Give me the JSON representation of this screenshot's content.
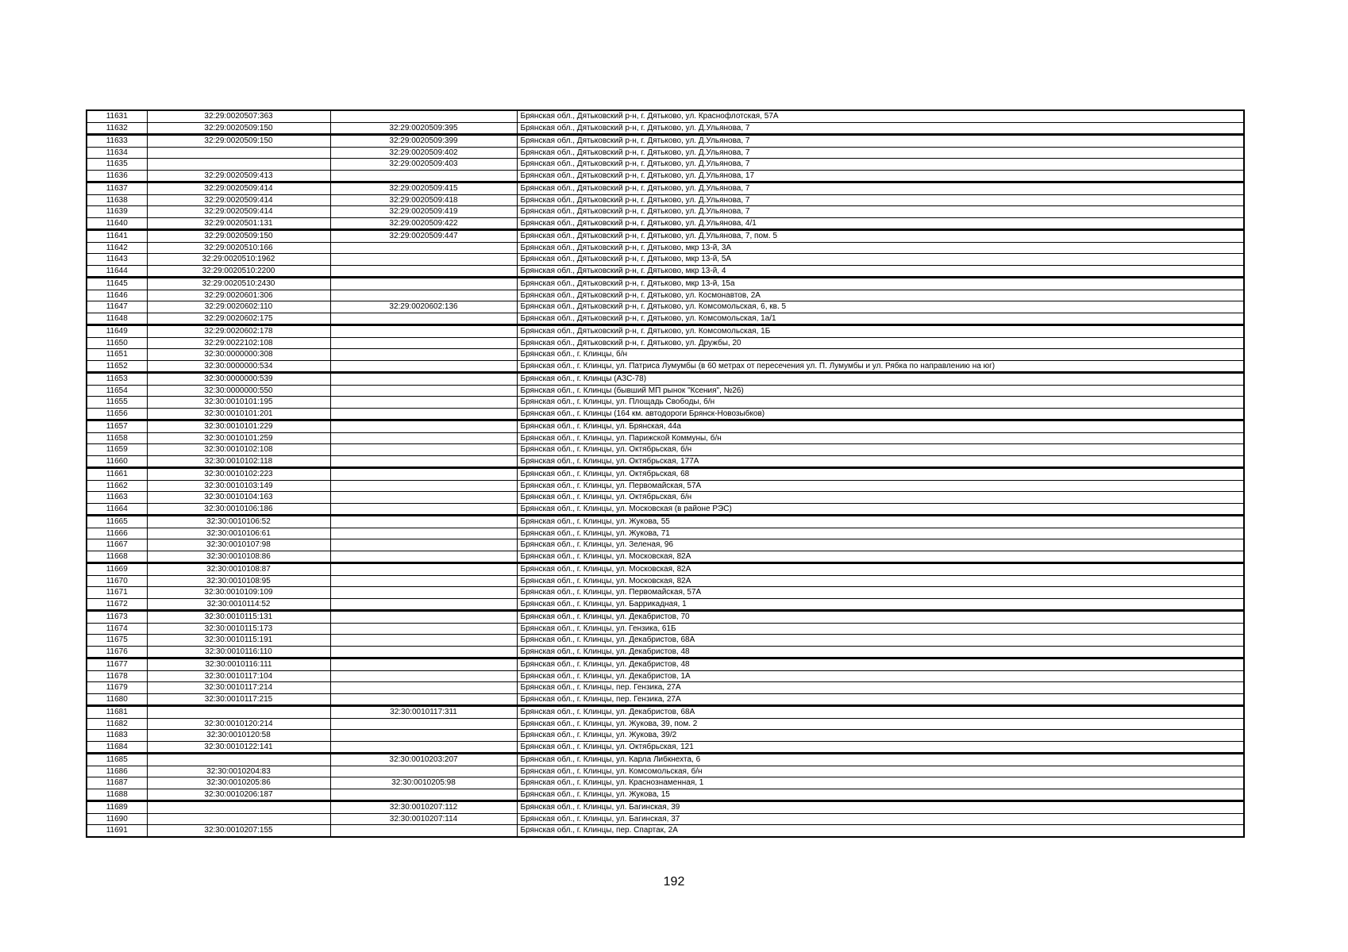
{
  "page": {
    "number": "192"
  },
  "table": {
    "rows": [
      {
        "n": "11631",
        "c1": "32:29:0020507:363",
        "c2": "",
        "addr": "Брянская обл., Дятьковский р-н, г. Дятьково, ул. Краснофлотская, 57А"
      },
      {
        "n": "11632",
        "c1": "32:29:0020509:150",
        "c2": "32:29:0020509:395",
        "addr": "Брянская обл., Дятьковский р-н, г. Дятьково, ул. Д.Ульянова, 7"
      },
      {
        "n": "11633",
        "c1": "32:29:0020509:150",
        "c2": "32:29:0020509:399",
        "addr": "Брянская обл., Дятьковский р-н, г. Дятьково, ул. Д.Ульянова, 7"
      },
      {
        "n": "11634",
        "c1": "",
        "c2": "32:29:0020509:402",
        "addr": "Брянская обл., Дятьковский р-н, г. Дятьково, ул. Д.Ульянова, 7"
      },
      {
        "n": "11635",
        "c1": "",
        "c2": "32:29:0020509:403",
        "addr": "Брянская обл., Дятьковский р-н, г. Дятьково, ул. Д.Ульянова, 7"
      },
      {
        "n": "11636",
        "c1": "32:29:0020509:413",
        "c2": "",
        "addr": "Брянская обл., Дятьковский р-н, г. Дятьково, ул. Д.Ульянова, 17"
      },
      {
        "n": "11637",
        "c1": "32:29:0020509:414",
        "c2": "32:29:0020509:415",
        "addr": "Брянская обл., Дятьковский р-н, г. Дятьково, ул. Д.Ульянова, 7"
      },
      {
        "n": "11638",
        "c1": "32:29:0020509:414",
        "c2": "32:29:0020509:418",
        "addr": "Брянская обл., Дятьковский р-н, г. Дятьково, ул. Д.Ульянова, 7"
      },
      {
        "n": "11639",
        "c1": "32:29:0020509:414",
        "c2": "32:29:0020509:419",
        "addr": "Брянская обл., Дятьковский р-н, г. Дятьково, ул. Д.Ульянова, 7"
      },
      {
        "n": "11640",
        "c1": "32:29:0020501:131",
        "c2": "32:29:0020509:422",
        "addr": "Брянская обл., Дятьковский р-н, г. Дятьково, ул. Д.Ульянова, 4/1"
      },
      {
        "n": "11641",
        "c1": "32:29:0020509:150",
        "c2": "32:29:0020509:447",
        "addr": "Брянская обл., Дятьковский р-н, г. Дятьково, ул. Д.Ульянова, 7, пом. 5"
      },
      {
        "n": "11642",
        "c1": "32:29:0020510:166",
        "c2": "",
        "addr": "Брянская обл., Дятьковский р-н, г. Дятьково, мкр 13-й, 3А"
      },
      {
        "n": "11643",
        "c1": "32:29:0020510:1962",
        "c2": "",
        "addr": "Брянская обл., Дятьковский р-н, г. Дятьково, мкр 13-й, 5А"
      },
      {
        "n": "11644",
        "c1": "32:29:0020510:2200",
        "c2": "",
        "addr": "Брянская обл., Дятьковский р-н, г. Дятьково, мкр 13-й, 4"
      },
      {
        "n": "11645",
        "c1": "32:29:0020510:2430",
        "c2": "",
        "addr": "Брянская обл., Дятьковский р-н, г. Дятьково, мкр 13-й, 15а"
      },
      {
        "n": "11646",
        "c1": "32:29:0020601:306",
        "c2": "",
        "addr": "Брянская обл., Дятьковский р-н, г. Дятьково, ул. Космонавтов, 2А"
      },
      {
        "n": "11647",
        "c1": "32:29:0020602:110",
        "c2": "32:29:0020602:136",
        "addr": "Брянская обл., Дятьковский р-н, г. Дятьково, ул. Комсомольская, 6, кв. 5"
      },
      {
        "n": "11648",
        "c1": "32:29:0020602:175",
        "c2": "",
        "addr": "Брянская обл., Дятьковский р-н, г. Дятьково, ул. Комсомольская, 1а/1"
      },
      {
        "n": "11649",
        "c1": "32:29:0020602:178",
        "c2": "",
        "addr": "Брянская обл., Дятьковский р-н, г. Дятьково, ул. Комсомольская, 1Б"
      },
      {
        "n": "11650",
        "c1": "32:29:0022102:108",
        "c2": "",
        "addr": "Брянская обл., Дятьковский р-н, г. Дятьково, ул. Дружбы, 20"
      },
      {
        "n": "11651",
        "c1": "32:30:0000000:308",
        "c2": "",
        "addr": "Брянская обл., г. Клинцы, б/н"
      },
      {
        "n": "11652",
        "c1": "32:30:0000000:534",
        "c2": "",
        "addr": "Брянская обл., г. Клинцы, ул. Патриса Лумумбы (в 60 метрах от пересечения ул. П. Лумумбы и ул. Рябка по направлению на юг)"
      },
      {
        "n": "11653",
        "c1": "32:30:0000000:539",
        "c2": "",
        "addr": "Брянская обл., г. Клинцы (АЗС-78)"
      },
      {
        "n": "11654",
        "c1": "32:30:0000000:550",
        "c2": "",
        "addr": "Брянская обл., г. Клинцы (бывший МП рынок \"Ксения\", №26)"
      },
      {
        "n": "11655",
        "c1": "32:30:0010101:195",
        "c2": "",
        "addr": "Брянская обл., г. Клинцы, ул. Площадь Свободы, б/н"
      },
      {
        "n": "11656",
        "c1": "32:30:0010101:201",
        "c2": "",
        "addr": "Брянская обл., г. Клинцы (164 км. автодороги Брянск-Новозыбков)"
      },
      {
        "n": "11657",
        "c1": "32:30:0010101:229",
        "c2": "",
        "addr": "Брянская обл., г. Клинцы, ул. Брянская, 44а"
      },
      {
        "n": "11658",
        "c1": "32:30:0010101:259",
        "c2": "",
        "addr": "Брянская обл., г. Клинцы, ул. Парижской Коммуны, б/н"
      },
      {
        "n": "11659",
        "c1": "32:30:0010102:108",
        "c2": "",
        "addr": "Брянская обл., г. Клинцы, ул. Октябрьская, б/н"
      },
      {
        "n": "11660",
        "c1": "32:30:0010102:118",
        "c2": "",
        "addr": "Брянская обл., г. Клинцы, ул. Октябрьская, 177А"
      },
      {
        "n": "11661",
        "c1": "32:30:0010102:223",
        "c2": "",
        "addr": "Брянская обл., г. Клинцы, ул. Октябрьская, 68"
      },
      {
        "n": "11662",
        "c1": "32:30:0010103:149",
        "c2": "",
        "addr": "Брянская обл., г. Клинцы, ул. Первомайская, 57А"
      },
      {
        "n": "11663",
        "c1": "32:30:0010104:163",
        "c2": "",
        "addr": "Брянская обл., г. Клинцы, ул. Октябрьская, б/н"
      },
      {
        "n": "11664",
        "c1": "32:30:0010106:186",
        "c2": "",
        "addr": "Брянская обл., г. Клинцы, ул. Московская (в районе РЭС)"
      },
      {
        "n": "11665",
        "c1": "32:30:0010106:52",
        "c2": "",
        "addr": "Брянская обл., г. Клинцы, ул. Жукова, 55"
      },
      {
        "n": "11666",
        "c1": "32:30:0010106:61",
        "c2": "",
        "addr": "Брянская обл., г. Клинцы, ул. Жукова, 71"
      },
      {
        "n": "11667",
        "c1": "32:30:0010107:98",
        "c2": "",
        "addr": "Брянская обл., г. Клинцы, ул. Зеленая, 96"
      },
      {
        "n": "11668",
        "c1": "32:30:0010108:86",
        "c2": "",
        "addr": "Брянская обл., г. Клинцы, ул. Московская, 82А"
      },
      {
        "n": "11669",
        "c1": "32:30:0010108:87",
        "c2": "",
        "addr": "Брянская обл., г. Клинцы, ул. Московская, 82А"
      },
      {
        "n": "11670",
        "c1": "32:30:0010108:95",
        "c2": "",
        "addr": "Брянская обл., г. Клинцы, ул. Московская, 82А"
      },
      {
        "n": "11671",
        "c1": "32:30:0010109:109",
        "c2": "",
        "addr": "Брянская обл., г. Клинцы, ул. Первомайская, 57А"
      },
      {
        "n": "11672",
        "c1": "32:30:0010114:52",
        "c2": "",
        "addr": "Брянская обл., г. Клинцы, ул. Баррикадная, 1"
      },
      {
        "n": "11673",
        "c1": "32:30:0010115:131",
        "c2": "",
        "addr": "Брянская обл., г. Клинцы, ул. Декабристов, 70"
      },
      {
        "n": "11674",
        "c1": "32:30:0010115:173",
        "c2": "",
        "addr": "Брянская обл., г. Клинцы, ул. Гензика, 61Б"
      },
      {
        "n": "11675",
        "c1": "32:30:0010115:191",
        "c2": "",
        "addr": "Брянская обл., г. Клинцы, ул. Декабристов, 68А"
      },
      {
        "n": "11676",
        "c1": "32:30:0010116:110",
        "c2": "",
        "addr": "Брянская обл., г. Клинцы, ул. Декабристов, 48"
      },
      {
        "n": "11677",
        "c1": "32:30:0010116:111",
        "c2": "",
        "addr": "Брянская обл., г. Клинцы, ул. Декабристов, 48"
      },
      {
        "n": "11678",
        "c1": "32:30:0010117:104",
        "c2": "",
        "addr": "Брянская обл., г. Клинцы, ул. Декабристов, 1А"
      },
      {
        "n": "11679",
        "c1": "32:30:0010117:214",
        "c2": "",
        "addr": "Брянская обл., г. Клинцы, пер. Гензика, 27А"
      },
      {
        "n": "11680",
        "c1": "32:30:0010117:215",
        "c2": "",
        "addr": "Брянская обл., г. Клинцы, пер. Гензика, 27А"
      },
      {
        "n": "11681",
        "c1": "",
        "c2": "32:30:0010117:311",
        "addr": "Брянская обл., г. Клинцы, ул. Декабристов, 68А"
      },
      {
        "n": "11682",
        "c1": "32:30:0010120:214",
        "c2": "",
        "addr": "Брянская обл., г. Клинцы, ул. Жукова, 39, пом. 2"
      },
      {
        "n": "11683",
        "c1": "32:30:0010120:58",
        "c2": "",
        "addr": "Брянская обл., г. Клинцы, ул. Жукова, 39/2"
      },
      {
        "n": "11684",
        "c1": "32:30:0010122:141",
        "c2": "",
        "addr": "Брянская обл., г. Клинцы, ул. Октябрьская, 121"
      },
      {
        "n": "11685",
        "c1": "",
        "c2": "32:30:0010203:207",
        "addr": "Брянская обл., г. Клинцы, ул. Карла Либкнехта, 6"
      },
      {
        "n": "11686",
        "c1": "32:30:0010204:83",
        "c2": "",
        "addr": "Брянская обл., г. Клинцы, ул. Комсомольская, б/н"
      },
      {
        "n": "11687",
        "c1": "32:30:0010205:86",
        "c2": "32:30:0010205:98",
        "addr": "Брянская обл., г. Клинцы, ул. Краснознаменная, 1"
      },
      {
        "n": "11688",
        "c1": "32:30:0010206:187",
        "c2": "",
        "addr": "Брянская обл., г. Клинцы, ул. Жукова, 15"
      },
      {
        "n": "11689",
        "c1": "",
        "c2": "32:30:0010207:112",
        "addr": "Брянская обл., г. Клинцы, ул. Багинская, 39"
      },
      {
        "n": "11690",
        "c1": "",
        "c2": "32:30:0010207:114",
        "addr": "Брянская обл., г. Клинцы, ул. Багинская, 37"
      },
      {
        "n": "11691",
        "c1": "32:30:0010207:155",
        "c2": "",
        "addr": "Брянская обл., г. Клинцы, пер. Спартак, 2А"
      }
    ]
  }
}
